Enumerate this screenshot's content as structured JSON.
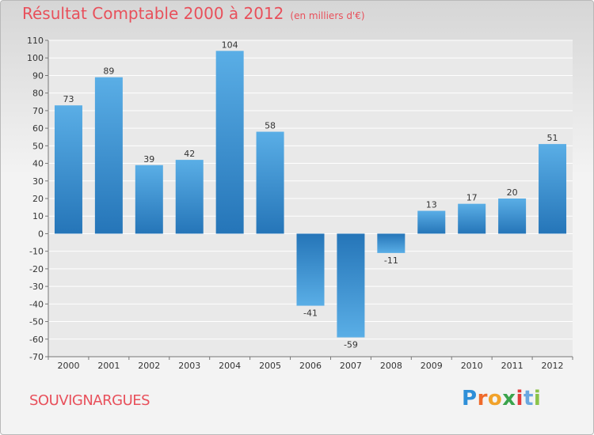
{
  "header": {
    "title": "Résultat Comptable 2000 à 2012",
    "subtitle": "(en milliers d'€)"
  },
  "footer": {
    "commune": "SOUVIGNARGUES",
    "logo_letters": [
      "P",
      "r",
      "o",
      "x",
      "i",
      "t",
      "i"
    ],
    "logo_colors": [
      "#2e8fd8",
      "#ef6a2b",
      "#f1a22a",
      "#3aa34b",
      "#e33b3b",
      "#6aa7e0",
      "#8bc34a"
    ]
  },
  "colors": {
    "bar_top": "#5aaee6",
    "bar_bottom": "#2575b8",
    "grid": "#ffffff",
    "text": "#333333",
    "accent": "#e8505b"
  },
  "chart_data": {
    "type": "bar",
    "categories": [
      "2000",
      "2001",
      "2002",
      "2003",
      "2004",
      "2005",
      "2006",
      "2007",
      "2008",
      "2009",
      "2010",
      "2011",
      "2012"
    ],
    "values": [
      73,
      89,
      39,
      42,
      104,
      58,
      -41,
      -59,
      -11,
      13,
      17,
      20,
      51
    ],
    "data_labels": [
      "73",
      "89",
      "39",
      "42",
      "104",
      "58",
      "-41",
      "-59",
      "-11",
      "13",
      "17",
      "20",
      "51"
    ],
    "y_ticks": [
      "110",
      "100",
      "90",
      "80",
      "70",
      "60",
      "50",
      "40",
      "30",
      "20",
      "10",
      "0",
      "-10",
      "-20",
      "-30",
      "-40",
      "-50",
      "-60",
      "-70"
    ],
    "ylim": [
      -70,
      110
    ],
    "grid": true,
    "title": "Résultat Comptable 2000 à 2012",
    "xlabel": "",
    "ylabel": ""
  }
}
